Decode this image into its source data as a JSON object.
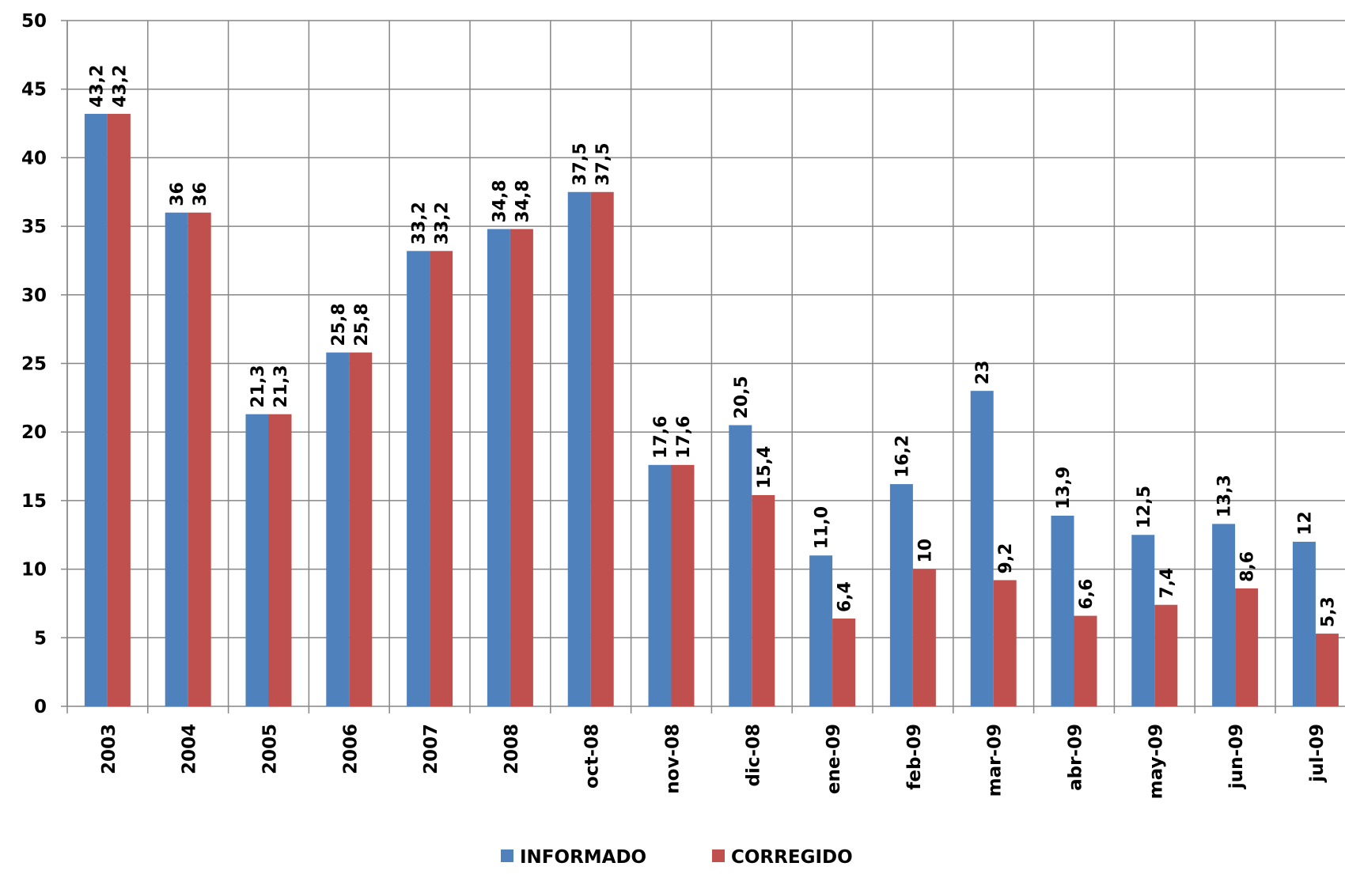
{
  "chart_data": {
    "type": "bar",
    "categories": [
      "2003",
      "2004",
      "2005",
      "2006",
      "2007",
      "2008",
      "oct-08",
      "nov-08",
      "dic-08",
      "ene-09",
      "feb-09",
      "mar-09",
      "abr-09",
      "may-09",
      "jun-09",
      "jul-09"
    ],
    "series": [
      {
        "name": "INFORMADO",
        "color": "#4f81bd",
        "values": [
          43.2,
          36,
          21.3,
          25.8,
          33.2,
          34.8,
          37.5,
          17.6,
          20.5,
          11.0,
          16.2,
          23,
          13.9,
          12.5,
          13.3,
          12
        ],
        "value_labels": [
          "43,2",
          "36",
          "21,3",
          "25,8",
          "33,2",
          "34,8",
          "37,5",
          "17,6",
          "20,5",
          "11,0",
          "16,2",
          "23",
          "13,9",
          "12,5",
          "13,3",
          "12"
        ]
      },
      {
        "name": "CORREGIDO",
        "color": "#c0504d",
        "values": [
          43.2,
          36,
          21.3,
          25.8,
          33.2,
          34.8,
          37.5,
          17.6,
          15.4,
          6.4,
          10,
          9.2,
          6.6,
          7.4,
          8.6,
          5.3
        ],
        "value_labels": [
          "43,2",
          "36",
          "21,3",
          "25,8",
          "33,2",
          "34,8",
          "37,5",
          "17,6",
          "15,4",
          "6,4",
          "10",
          "9,2",
          "6,6",
          "7,4",
          "8,6",
          "5,3"
        ]
      }
    ],
    "ylim": [
      0,
      50
    ],
    "yticks": [
      0,
      5,
      10,
      15,
      20,
      25,
      30,
      35,
      40,
      45,
      50
    ],
    "grid": true,
    "legend": "bottom"
  }
}
